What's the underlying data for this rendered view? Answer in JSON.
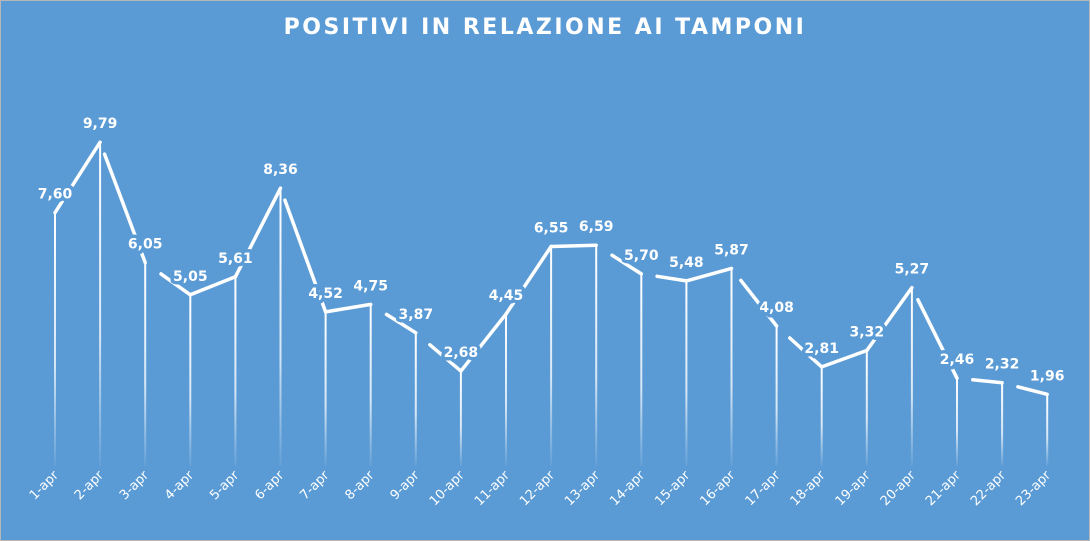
{
  "chart_data": {
    "type": "line",
    "title": "POSITIVI IN RELAZIONE AI TAMPONI",
    "xlabel": "",
    "ylabel": "",
    "categories": [
      "1-apr",
      "2-apr",
      "3-apr",
      "4-apr",
      "5-apr",
      "6-apr",
      "7-apr",
      "8-apr",
      "9-apr",
      "10-apr",
      "11-apr",
      "12-apr",
      "13-apr",
      "14-apr",
      "15-apr",
      "16-apr",
      "17-apr",
      "18-apr",
      "19-apr",
      "20-apr",
      "21-apr",
      "22-apr",
      "23-apr"
    ],
    "series": [
      {
        "values": [
          7.6,
          9.79,
          6.05,
          5.05,
          5.61,
          8.36,
          4.52,
          4.75,
          3.87,
          2.68,
          4.45,
          6.55,
          6.59,
          5.7,
          5.48,
          5.87,
          4.08,
          2.81,
          3.32,
          5.27,
          2.46,
          2.32,
          1.96
        ],
        "data_labels": [
          "7,60",
          "9,79",
          "6,05",
          "5,05",
          "5,61",
          "8,36",
          "4,52",
          "4,75",
          "3,87",
          "2,68",
          "4,45",
          "6,55",
          "6,59",
          "5,70",
          "5,48",
          "5,87",
          "4,08",
          "2,81",
          "3,32",
          "5,27",
          "2,46",
          "2,32",
          "1,96"
        ]
      }
    ],
    "ylim": [
      0,
      10.5
    ],
    "grid": false,
    "legend": "none",
    "drop_lines": true,
    "colors": {
      "background": "#5b9bd5",
      "line": "#ffffff",
      "text": "#ffffff"
    }
  }
}
